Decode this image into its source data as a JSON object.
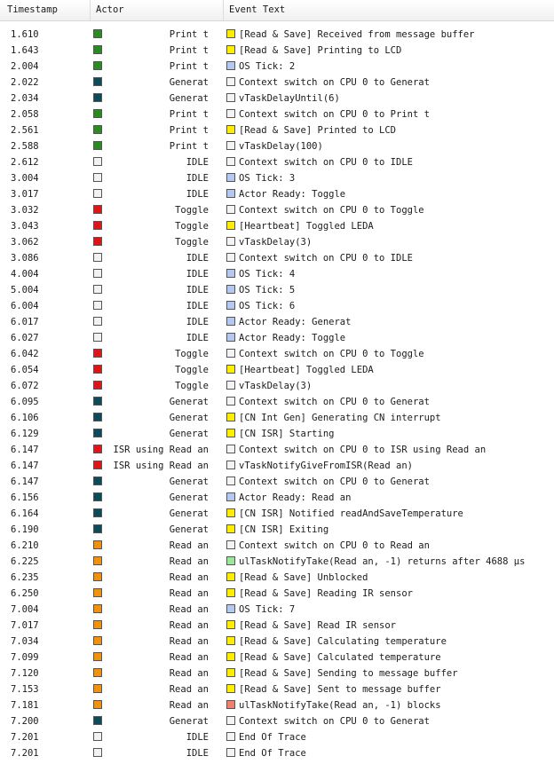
{
  "columns": {
    "timestamp": "Timestamp",
    "actor": "Actor",
    "event": "Event Text"
  },
  "colors": {
    "print": "#2a8c1f",
    "generat": "#0d4a5e",
    "idle": "#f2f2f2",
    "toggle": "#e01414",
    "readan": "#f0920e",
    "yellow": "#ffee00",
    "plain": "#f4f4f4",
    "blue": "#b4c8f0",
    "green": "#9ae89a",
    "red": "#f08070"
  },
  "rows": [
    {
      "ts": "1.610",
      "ac": "print",
      "actor": "Print t",
      "ec": "yellow",
      "text": "[Read & Save] Received from message buffer"
    },
    {
      "ts": "1.643",
      "ac": "print",
      "actor": "Print t",
      "ec": "yellow",
      "text": "[Read & Save] Printing to LCD"
    },
    {
      "ts": "2.004",
      "ac": "print",
      "actor": "Print t",
      "ec": "blue",
      "text": "OS Tick: 2"
    },
    {
      "ts": "2.022",
      "ac": "generat",
      "actor": "Generat",
      "ec": "plain",
      "text": "Context switch on CPU 0 to Generat"
    },
    {
      "ts": "2.034",
      "ac": "generat",
      "actor": "Generat",
      "ec": "plain",
      "text": "vTaskDelayUntil(6)"
    },
    {
      "ts": "2.058",
      "ac": "print",
      "actor": "Print t",
      "ec": "plain",
      "text": "Context switch on CPU 0 to Print t"
    },
    {
      "ts": "2.561",
      "ac": "print",
      "actor": "Print t",
      "ec": "yellow",
      "text": "[Read & Save] Printed to LCD"
    },
    {
      "ts": "2.588",
      "ac": "print",
      "actor": "Print t",
      "ec": "plain",
      "text": "vTaskDelay(100)"
    },
    {
      "ts": "2.612",
      "ac": "idle",
      "actor": "IDLE",
      "ec": "plain",
      "text": "Context switch on CPU 0 to IDLE"
    },
    {
      "ts": "3.004",
      "ac": "idle",
      "actor": "IDLE",
      "ec": "blue",
      "text": "OS Tick: 3"
    },
    {
      "ts": "3.017",
      "ac": "idle",
      "actor": "IDLE",
      "ec": "blue",
      "text": "Actor Ready: Toggle"
    },
    {
      "ts": "3.032",
      "ac": "toggle",
      "actor": "Toggle",
      "ec": "plain",
      "text": "Context switch on CPU 0 to Toggle"
    },
    {
      "ts": "3.043",
      "ac": "toggle",
      "actor": "Toggle",
      "ec": "yellow",
      "text": "[Heartbeat] Toggled LEDA"
    },
    {
      "ts": "3.062",
      "ac": "toggle",
      "actor": "Toggle",
      "ec": "plain",
      "text": "vTaskDelay(3)"
    },
    {
      "ts": "3.086",
      "ac": "idle",
      "actor": "IDLE",
      "ec": "plain",
      "text": "Context switch on CPU 0 to IDLE"
    },
    {
      "ts": "4.004",
      "ac": "idle",
      "actor": "IDLE",
      "ec": "blue",
      "text": "OS Tick: 4"
    },
    {
      "ts": "5.004",
      "ac": "idle",
      "actor": "IDLE",
      "ec": "blue",
      "text": "OS Tick: 5"
    },
    {
      "ts": "6.004",
      "ac": "idle",
      "actor": "IDLE",
      "ec": "blue",
      "text": "OS Tick: 6"
    },
    {
      "ts": "6.017",
      "ac": "idle",
      "actor": "IDLE",
      "ec": "blue",
      "text": "Actor Ready: Generat"
    },
    {
      "ts": "6.027",
      "ac": "idle",
      "actor": "IDLE",
      "ec": "blue",
      "text": "Actor Ready: Toggle"
    },
    {
      "ts": "6.042",
      "ac": "toggle",
      "actor": "Toggle",
      "ec": "plain",
      "text": "Context switch on CPU 0 to Toggle"
    },
    {
      "ts": "6.054",
      "ac": "toggle",
      "actor": "Toggle",
      "ec": "yellow",
      "text": "[Heartbeat] Toggled LEDA"
    },
    {
      "ts": "6.072",
      "ac": "toggle",
      "actor": "Toggle",
      "ec": "plain",
      "text": "vTaskDelay(3)"
    },
    {
      "ts": "6.095",
      "ac": "generat",
      "actor": "Generat",
      "ec": "plain",
      "text": "Context switch on CPU 0 to Generat"
    },
    {
      "ts": "6.106",
      "ac": "generat",
      "actor": "Generat",
      "ec": "yellow",
      "text": "[CN Int Gen] Generating CN interrupt"
    },
    {
      "ts": "6.129",
      "ac": "generat",
      "actor": "Generat",
      "ec": "yellow",
      "text": "[CN ISR] Starting"
    },
    {
      "ts": "6.147",
      "ac": "toggle",
      "actor": "ISR using Read an",
      "ec": "plain",
      "text": "Context switch on CPU 0 to ISR using Read an"
    },
    {
      "ts": "6.147",
      "ac": "toggle",
      "actor": "ISR using Read an",
      "ec": "plain",
      "text": "vTaskNotifyGiveFromISR(Read an)"
    },
    {
      "ts": "6.147",
      "ac": "generat",
      "actor": "Generat",
      "ec": "plain",
      "text": "Context switch on CPU 0 to Generat"
    },
    {
      "ts": "6.156",
      "ac": "generat",
      "actor": "Generat",
      "ec": "blue",
      "text": "Actor Ready: Read an"
    },
    {
      "ts": "6.164",
      "ac": "generat",
      "actor": "Generat",
      "ec": "yellow",
      "text": "[CN ISR] Notified readAndSaveTemperature"
    },
    {
      "ts": "6.190",
      "ac": "generat",
      "actor": "Generat",
      "ec": "yellow",
      "text": "[CN ISR] Exiting"
    },
    {
      "ts": "6.210",
      "ac": "readan",
      "actor": "Read an",
      "ec": "plain",
      "text": "Context switch on CPU 0 to Read an"
    },
    {
      "ts": "6.225",
      "ac": "readan",
      "actor": "Read an",
      "ec": "green",
      "text": "ulTaskNotifyTake(Read an, -1) returns after 4688 μs"
    },
    {
      "ts": "6.235",
      "ac": "readan",
      "actor": "Read an",
      "ec": "yellow",
      "text": "[Read & Save] Unblocked"
    },
    {
      "ts": "6.250",
      "ac": "readan",
      "actor": "Read an",
      "ec": "yellow",
      "text": "[Read & Save] Reading IR sensor"
    },
    {
      "ts": "7.004",
      "ac": "readan",
      "actor": "Read an",
      "ec": "blue",
      "text": "OS Tick: 7"
    },
    {
      "ts": "7.017",
      "ac": "readan",
      "actor": "Read an",
      "ec": "yellow",
      "text": "[Read & Save] Read IR sensor"
    },
    {
      "ts": "7.034",
      "ac": "readan",
      "actor": "Read an",
      "ec": "yellow",
      "text": "[Read & Save] Calculating temperature"
    },
    {
      "ts": "7.099",
      "ac": "readan",
      "actor": "Read an",
      "ec": "yellow",
      "text": "[Read & Save] Calculated temperature"
    },
    {
      "ts": "7.120",
      "ac": "readan",
      "actor": "Read an",
      "ec": "yellow",
      "text": "[Read & Save] Sending to message buffer"
    },
    {
      "ts": "7.153",
      "ac": "readan",
      "actor": "Read an",
      "ec": "yellow",
      "text": "[Read & Save] Sent to message buffer"
    },
    {
      "ts": "7.181",
      "ac": "readan",
      "actor": "Read an",
      "ec": "red",
      "text": "ulTaskNotifyTake(Read an, -1) blocks"
    },
    {
      "ts": "7.200",
      "ac": "generat",
      "actor": "Generat",
      "ec": "plain",
      "text": "Context switch on CPU 0 to Generat"
    },
    {
      "ts": "7.201",
      "ac": "idle",
      "actor": "IDLE",
      "ec": "plain",
      "text": "End Of Trace"
    },
    {
      "ts": "7.201",
      "ac": "idle",
      "actor": "IDLE",
      "ec": "plain",
      "text": "End Of Trace"
    }
  ]
}
